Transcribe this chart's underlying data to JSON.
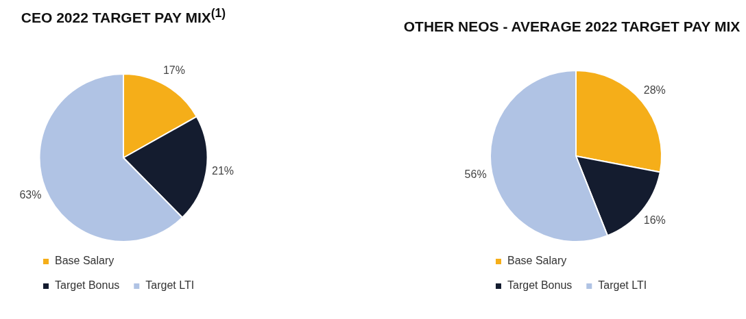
{
  "chart_data": [
    {
      "type": "pie",
      "title": "CEO 2022 TARGET PAY MIX$^{(1)}$",
      "categories": [
        "Base Salary",
        "Target Bonus",
        "Target LTI"
      ],
      "values": [
        17,
        21,
        63
      ],
      "value_labels": [
        "17%",
        "21%",
        "63%"
      ],
      "colors": [
        "#f5ae19",
        "#141c2f",
        "#b0c3e4"
      ],
      "legend": "bottom left"
    },
    {
      "type": "pie",
      "title": "OTHER NEOS - AVERAGE 2022 TARGET PAY MIX",
      "categories": [
        "Base Salary",
        "Target Bonus",
        "Target LTI"
      ],
      "values": [
        28,
        16,
        56
      ],
      "value_labels": [
        "28%",
        "16%",
        "56%"
      ],
      "colors": [
        "#f5ae19",
        "#141c2f",
        "#b0c3e4"
      ],
      "legend": "bottom left"
    }
  ]
}
